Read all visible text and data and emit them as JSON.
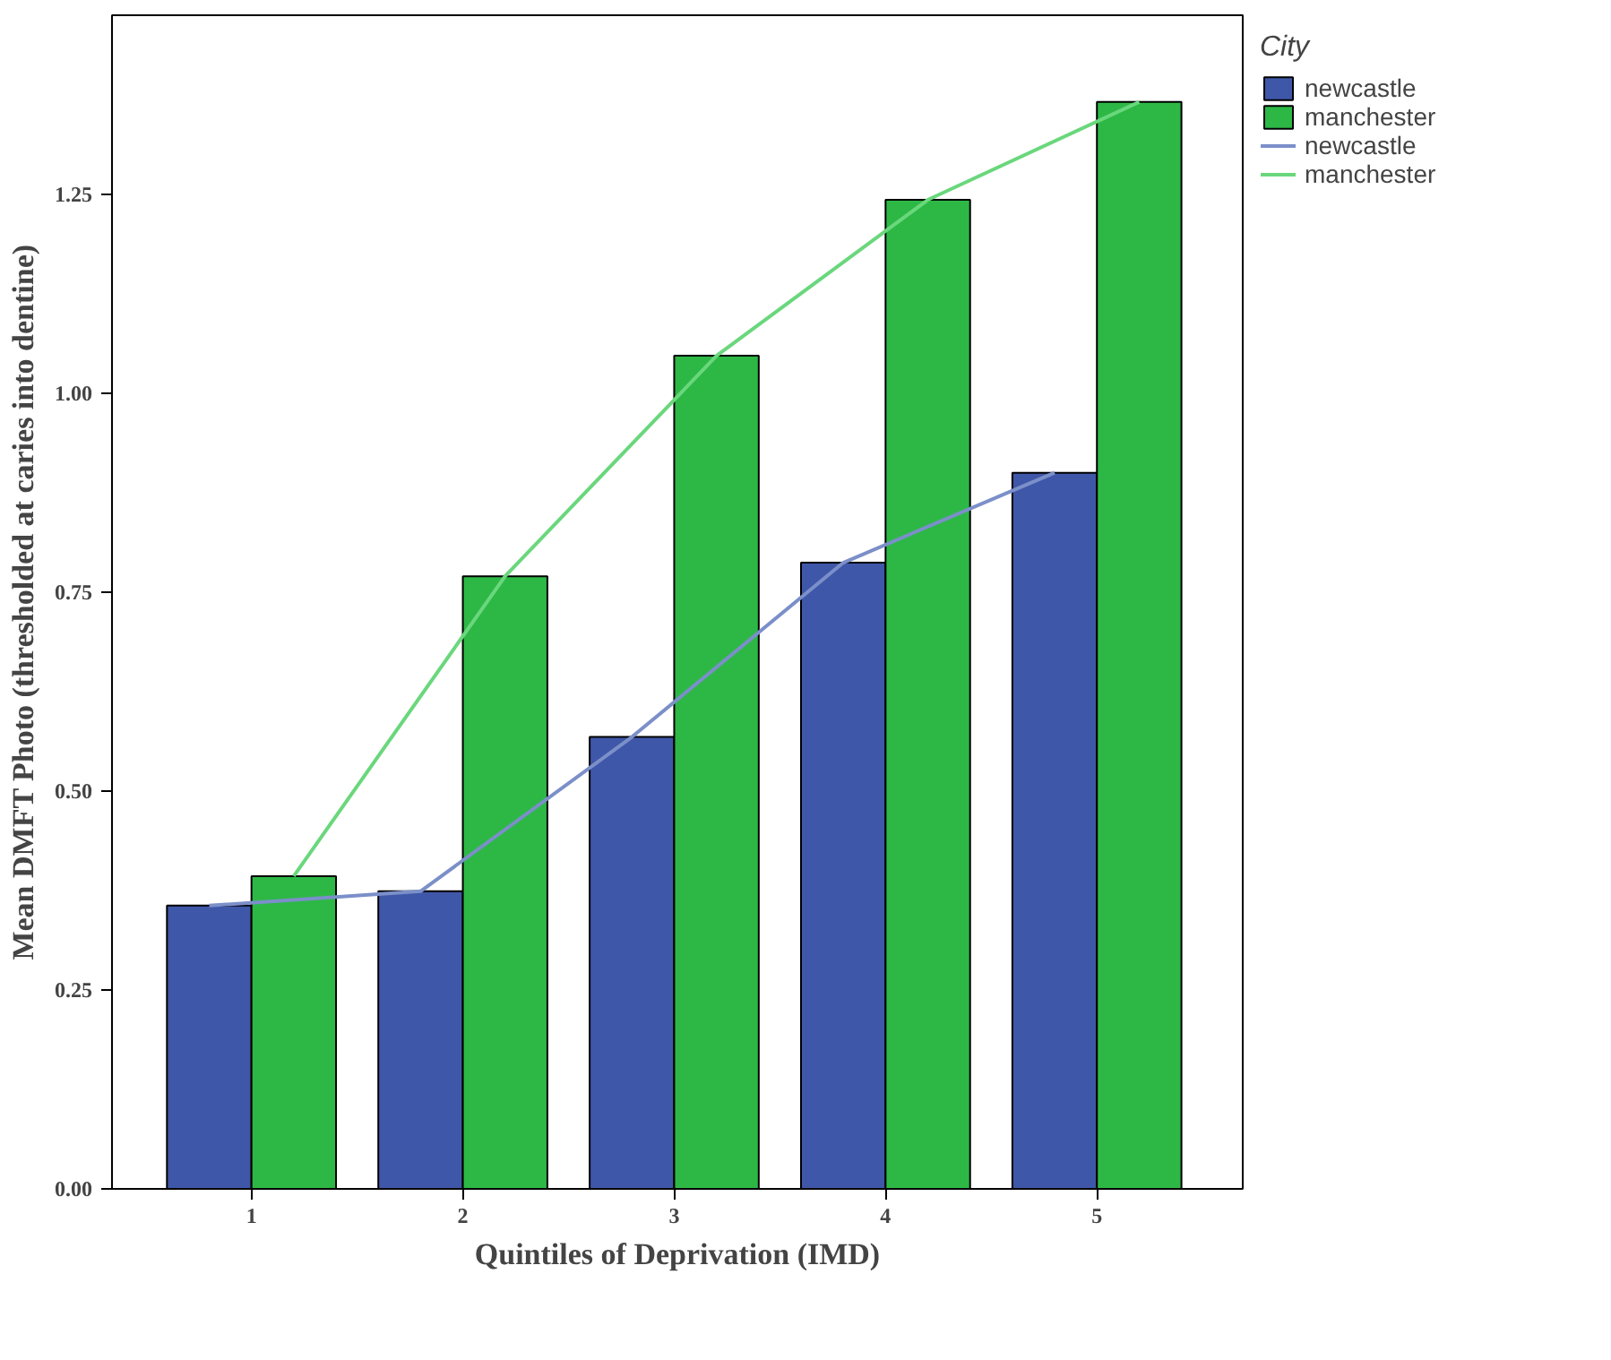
{
  "chart_data": {
    "type": "bar",
    "xlabel": "Quintiles of Deprivation (IMD)",
    "ylabel": "Mean DMFT Photo (thresholded at caries into dentine)",
    "legend_title": "City",
    "categories": [
      "1",
      "2",
      "3",
      "4",
      "5"
    ],
    "series": [
      {
        "name": "newcastle",
        "color": "#3f57a8",
        "values": [
          0.356,
          0.374,
          0.568,
          0.787,
          0.9
        ]
      },
      {
        "name": "manchester",
        "color": "#2db846",
        "values": [
          0.393,
          0.77,
          1.047,
          1.243,
          1.366
        ]
      },
      {
        "name": "newcastle",
        "type": "line",
        "color": "#7b8fc9",
        "values": [
          0.356,
          0.374,
          0.568,
          0.787,
          0.9
        ]
      },
      {
        "name": "manchester",
        "type": "line",
        "color": "#6ad77c",
        "values": [
          0.393,
          0.77,
          1.047,
          1.243,
          1.366
        ]
      }
    ],
    "ylim": [
      0,
      1.475
    ],
    "yticks": [
      {
        "value": 0,
        "label": "0.00"
      },
      {
        "value": 0.25,
        "label": "0.25"
      },
      {
        "value": 0.5,
        "label": "0.50"
      },
      {
        "value": 0.75,
        "label": "0.75"
      },
      {
        "value": 1,
        "label": "1.00"
      },
      {
        "value": 1.25,
        "label": "1.25"
      }
    ],
    "grid": false,
    "legend": "top right"
  }
}
